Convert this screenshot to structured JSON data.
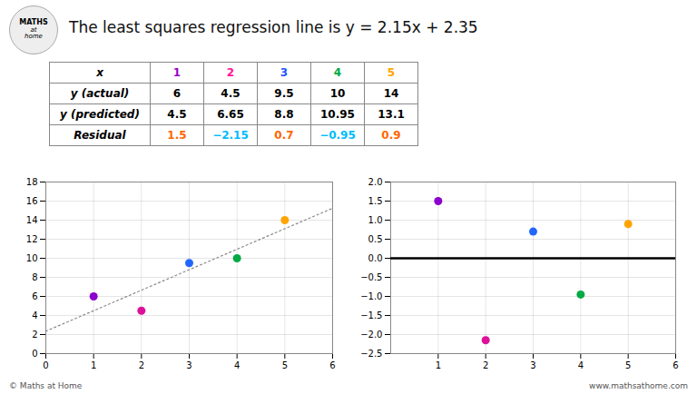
{
  "chart_data": [
    {
      "type": "table",
      "title": "The least squares regression line is y = 2.15x + 2.35",
      "annotations": [
        "MATHS",
        "at",
        "home",
        "© Maths at Home",
        "www.mathsathome.com"
      ],
      "xlabel": "x",
      "categories": [
        1,
        2,
        3,
        4,
        5
      ],
      "colors": [
        "#9900CC",
        "#FF1199",
        "#2255FF",
        "#00AA44",
        "#FFA500"
      ],
      "series": [
        {
          "name": "y (actual)",
          "values": [
            6,
            4.5,
            9.5,
            10,
            14
          ]
        },
        {
          "name": "y (predicted)",
          "values": [
            4.5,
            6.65,
            8.8,
            10.95,
            13.1
          ]
        },
        {
          "name": "Residual",
          "values": [
            1.5,
            -2.15,
            0.7,
            -0.95,
            0.9
          ],
          "value_labels": [
            "1.5",
            "−2.15",
            "0.7",
            "−0.95",
            "0.9"
          ],
          "colors": [
            "#FF6600",
            "#00BBFF",
            "#FF6600",
            "#00BBFF",
            "#FF6600"
          ]
        }
      ]
    },
    {
      "type": "scatter",
      "xlim": [
        0,
        6
      ],
      "xticks": [
        0,
        1,
        2,
        3,
        4,
        5,
        6
      ],
      "ylim": [
        0,
        18
      ],
      "yticks": [
        0,
        2,
        4,
        6,
        8,
        10,
        12,
        14,
        16,
        18
      ],
      "grid": true,
      "series": [
        {
          "type": "line",
          "x": [
            0,
            6
          ],
          "values": [
            2.35,
            15.25
          ],
          "color": "#888888",
          "line_style": "dotted"
        },
        {
          "type": "scatter",
          "x": [
            1,
            2,
            3,
            4,
            5
          ],
          "values": [
            6,
            4.5,
            9.5,
            10,
            14
          ],
          "colors": [
            "#8B00CC",
            "#DD1199",
            "#2266FF",
            "#00AA44",
            "#FFA500"
          ]
        }
      ]
    },
    {
      "type": "scatter",
      "xlim": [
        0,
        6
      ],
      "xticks": [
        1,
        2,
        3,
        4,
        5,
        6
      ],
      "ylim": [
        -2.5,
        2.0
      ],
      "yticks": [
        {
          "value": -2.5,
          "label": "−2.5"
        },
        {
          "value": -2,
          "label": "−2.0"
        },
        {
          "value": -1.5,
          "label": "−1.5"
        },
        {
          "value": -1,
          "label": "−1.0"
        },
        {
          "value": -0.5,
          "label": "−0.5"
        },
        {
          "value": 0,
          "label": "0.0"
        },
        {
          "value": 0.5,
          "label": "0.5"
        },
        {
          "value": 1,
          "label": "1.0"
        },
        {
          "value": 1.5,
          "label": "1.5"
        },
        {
          "value": 2,
          "label": "2.0"
        }
      ],
      "grid": true,
      "series": [
        {
          "type": "line",
          "x": [
            0,
            6
          ],
          "values": [
            0,
            0
          ],
          "color": "#000000",
          "line_style": "solid"
        },
        {
          "type": "scatter",
          "x": [
            1,
            2,
            3,
            4,
            5
          ],
          "values": [
            1.5,
            -2.15,
            0.7,
            -0.95,
            0.9
          ],
          "colors": [
            "#8B00CC",
            "#DD1199",
            "#2266FF",
            "#00AA44",
            "#FFA500"
          ]
        }
      ]
    }
  ]
}
